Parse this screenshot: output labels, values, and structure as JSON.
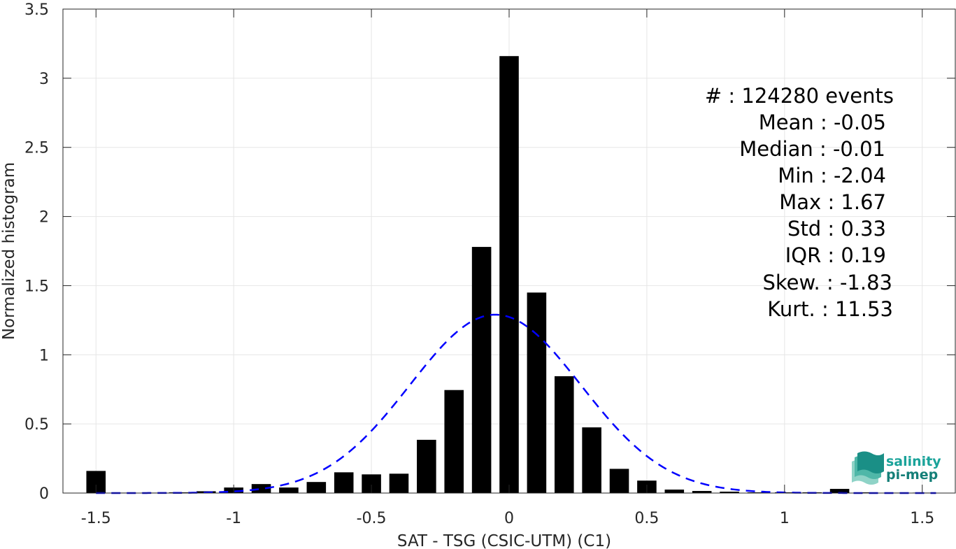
{
  "chart_data": {
    "type": "bar",
    "xlabel": "SAT - TSG (CSIC-UTM) (C1)",
    "ylabel": "Normalized histogram",
    "xlim": [
      -1.62,
      1.62
    ],
    "ylim": [
      0,
      3.5
    ],
    "xticks": [
      -1.5,
      -1,
      -0.5,
      0,
      0.5,
      1,
      1.5
    ],
    "xtick_labels": [
      "-1.5",
      "-1",
      "-0.5",
      "0",
      "0.5",
      "1",
      "1.5"
    ],
    "yticks": [
      0,
      0.5,
      1,
      1.5,
      2,
      2.5,
      3,
      3.5
    ],
    "ytick_labels": [
      "0",
      "0.5",
      "1",
      "1.5",
      "2",
      "2.5",
      "3",
      "3.5"
    ],
    "grid": true,
    "bar_width": 0.07,
    "bars": {
      "x": [
        -1.5,
        -1.4,
        -1.3,
        -1.2,
        -1.1,
        -1.0,
        -0.9,
        -0.8,
        -0.7,
        -0.6,
        -0.5,
        -0.4,
        -0.3,
        -0.2,
        -0.1,
        0.0,
        0.1,
        0.2,
        0.3,
        0.4,
        0.5,
        0.6,
        0.7,
        0.8,
        0.9,
        1.0,
        1.1,
        1.2,
        1.3,
        1.4,
        1.5
      ],
      "values": [
        0.16,
        0.003,
        0.003,
        0.005,
        0.013,
        0.04,
        0.065,
        0.04,
        0.08,
        0.15,
        0.135,
        0.14,
        0.385,
        0.745,
        1.78,
        3.16,
        1.45,
        0.845,
        0.475,
        0.175,
        0.09,
        0.025,
        0.015,
        0.01,
        0.005,
        0.005,
        0.005,
        0.03,
        0.005,
        0.003,
        0.003
      ],
      "color": "#000000"
    },
    "fit_curve": {
      "style": "dashed",
      "color": "#0000ff",
      "distribution": "normal",
      "mean": -0.05,
      "std": 0.31,
      "peak": 1.29
    },
    "annotations": [
      "#  : 124280 events",
      "Mean : -0.05",
      "Median : -0.01",
      "Min : -2.04",
      "Max : 1.67",
      "Std : 0.33",
      "IQR : 0.19",
      "Skew. : -1.83",
      "Kurt. : 11.53"
    ]
  },
  "logo": {
    "line1": "salinity",
    "line2": "pi-mep",
    "color": "#1aa39a"
  }
}
